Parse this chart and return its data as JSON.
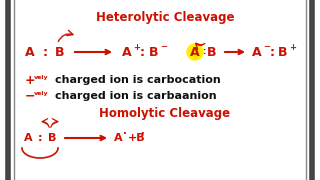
{
  "bg_color": "#ffffff",
  "red": "#cc1100",
  "black": "#111111",
  "yellow_highlight": "#ffee00",
  "title_heterolytic": "Heterolytic Cleavage",
  "title_homolytic": "Homolytic Cleavage",
  "text_carbocation": "charged ion is carbocation",
  "text_carbaanion": "charged ion is carbaanion",
  "figsize": [
    3.2,
    1.8
  ],
  "dpi": 100
}
